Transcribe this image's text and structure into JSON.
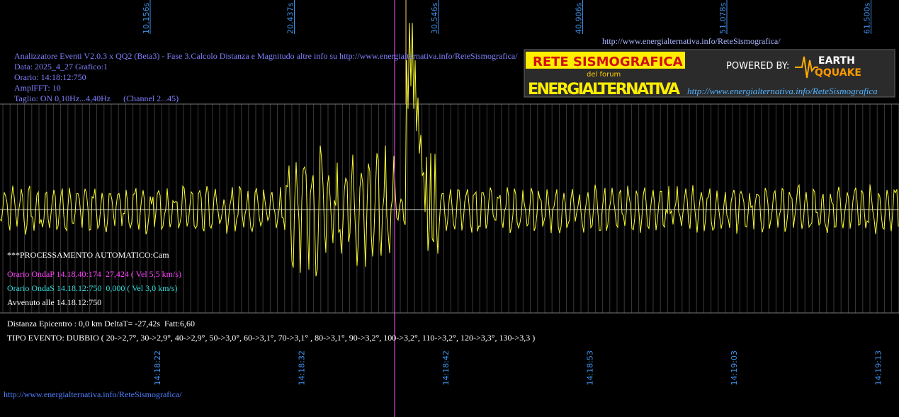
{
  "top_time_labels": [
    "10,156s",
    "20,437s",
    "30,546s",
    "40,906s",
    "51,078s",
    "61,500s"
  ],
  "bottom_time_labels": [
    "14:18:22",
    "14:18:32",
    "14:18:42",
    "14:18:53",
    "14:19:03",
    "14:19:13"
  ],
  "url_top": "http://www.energialternativa.info/ReteSismografica/",
  "header": [
    "Analizzatore Eventi V2.0.3 x QQ2 (Beta3) - Fase 3.Calcolo Distanza e Magnitudo altre info su http://www.energialternativa.info/ReteSismografica/",
    "Data: 2025_4_27 Grafico:1",
    "Orario: 14:18:12:750",
    "AmplFFT: 10",
    "Taglio: ON 0,10Hz...4,40Hz      (Channel 2...45)"
  ],
  "processing": "***PROCESSAMENTO AUTOMATICO:Cam",
  "onda_p": "Orario OndaP 14.18.40:174  27,424 ( Vel 5,5 km/s)",
  "onda_s": "Orario OndaS 14.18.12:750  0,000 ( Vel 3,0 km/s)",
  "avvenuto": "Avvenuto alle 14.18.12:750",
  "distanza": "Distanza Epicentro : 0,0 km DeltaT= -27,42s  Fatt:6,60",
  "tipo_evento": "TIPO EVENTO: DUBBIO ( 20->2,7°, 30->2,9°, 40->2,9°, 50->3,0°, 60->3,1°, 70->3,1° , 80->3,1°, 90->3,2°, 100->3,2°, 110->3,2°, 120->3,3°, 130->3,3 )",
  "url_bottom": "http://www.energialternativa.info/ReteSismografica/",
  "logo": {
    "title": "RETE SISMOGRAFICA",
    "subtitle": "del forum",
    "name": "ENERGIALTERNATIVA",
    "powered": "POWERED BY:",
    "brand1": "EARTH",
    "brand2": "QQUAKE",
    "link": "http://www.energialternativa.info/ReteSismografica"
  }
}
